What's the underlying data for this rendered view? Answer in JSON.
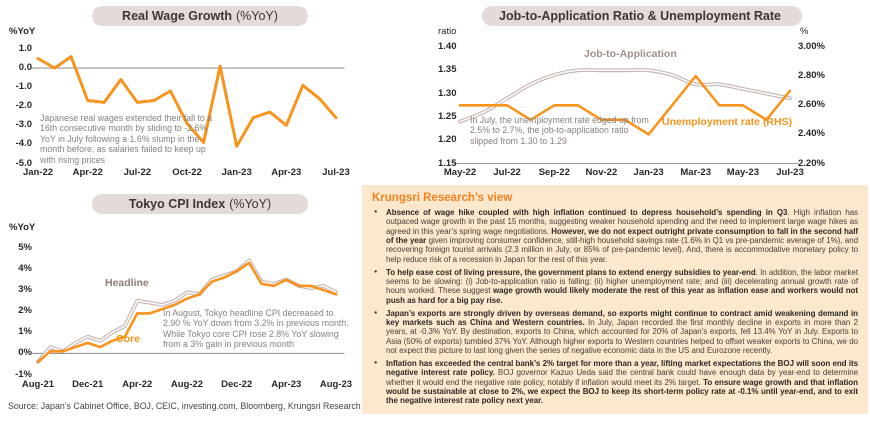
{
  "colors": {
    "accent_orange": "#F7941D",
    "line_taupe": "#C7B6B0",
    "title_pill_bg": "#E4DAD7",
    "panel_bg": "#FCE8CC",
    "panel_title_orange": "#F58220",
    "annotation_grey": "#8A807B",
    "axis_grey": "#8F8B88"
  },
  "chart_data": [
    {
      "id": "real_wage",
      "type": "line",
      "title": "Real Wage Growth",
      "title_suffix": "(%YoY)",
      "ylabel": "%YoY",
      "ylim": [
        -5.0,
        1.0
      ],
      "y_ticks": [
        1.0,
        0.0,
        -1.0,
        -2.0,
        -3.0,
        -4.0,
        -5.0
      ],
      "y_tick_labels": [
        "1.0",
        "0.0",
        "-1.0",
        "-2.0",
        "-3.0",
        "-4.0",
        "-5.0"
      ],
      "x": [
        "Jan-22",
        "Feb-22",
        "Mar-22",
        "Apr-22",
        "May-22",
        "Jun-22",
        "Jul-22",
        "Aug-22",
        "Sep-22",
        "Oct-22",
        "Nov-22",
        "Dec-22",
        "Jan-23",
        "Feb-23",
        "Mar-23",
        "Apr-23",
        "May-23",
        "Jun-23",
        "Jul-23"
      ],
      "x_tick_labels": [
        "Jan-22",
        "Apr-22",
        "Jul-22",
        "Oct-22",
        "Jan-23",
        "Apr-23",
        "Jul-23"
      ],
      "series": [
        {
          "name": "Real wage growth",
          "color": "#F7941D",
          "values": [
            0.5,
            0.0,
            0.6,
            -1.7,
            -1.8,
            -0.6,
            -1.8,
            -1.7,
            -1.2,
            -2.9,
            -3.9,
            0.1,
            -4.1,
            -2.6,
            -2.3,
            -3.0,
            -0.9,
            -1.6,
            -2.6
          ]
        }
      ],
      "annotation": "Japanese real wages extended their fall to a 16th consecutive month by sliding to -2.6% YoY in July following a 1.6% slump in the month before, as salaries failed to keep up with rising prices"
    },
    {
      "id": "job_unemployment",
      "type": "line",
      "title": "Job-to-Application Ratio & Unemployment Rate",
      "title_suffix": "",
      "ylabel_left": "ratio",
      "ylabel_right": "%",
      "ylim_left": [
        1.15,
        1.4
      ],
      "ylim_right": [
        2.2,
        3.0
      ],
      "y_ticks_left": [
        1.4,
        1.35,
        1.3,
        1.25,
        1.2,
        1.15
      ],
      "y_tick_labels_left": [
        "1.40",
        "1.35",
        "1.30",
        "1.25",
        "1.20",
        "1.15"
      ],
      "y_ticks_right": [
        3.0,
        2.8,
        2.6,
        2.4,
        2.2
      ],
      "y_tick_labels_right": [
        "3.00%",
        "2.80%",
        "2.60%",
        "2.40%",
        "2.20%"
      ],
      "x": [
        "May-22",
        "Jun-22",
        "Jul-22",
        "Aug-22",
        "Sep-22",
        "Oct-22",
        "Nov-22",
        "Dec-22",
        "Jan-23",
        "Feb-23",
        "Mar-23",
        "Apr-23",
        "May-23",
        "Jun-23",
        "Jul-23"
      ],
      "x_tick_labels": [
        "May-22",
        "Jul-22",
        "Sep-22",
        "Nov-22",
        "Jan-23",
        "Mar-23",
        "May-23",
        "Jul-23"
      ],
      "series": [
        {
          "name": "Job-to-Application",
          "axis": "left",
          "style": "outline",
          "color": "#C7B6B0",
          "label_color": "#A08E88",
          "values": [
            1.24,
            1.26,
            1.29,
            1.32,
            1.34,
            1.35,
            1.35,
            1.35,
            1.35,
            1.34,
            1.32,
            1.32,
            1.31,
            1.3,
            1.29
          ]
        },
        {
          "name": "Unemployment rate (RHS)",
          "axis": "right",
          "color": "#F7941D",
          "values": [
            2.6,
            2.6,
            2.6,
            2.5,
            2.6,
            2.6,
            2.5,
            2.5,
            2.4,
            2.6,
            2.8,
            2.6,
            2.6,
            2.5,
            2.7
          ]
        }
      ],
      "annotation": "In July, the unemployment rate edged up from 2.5% to 2.7%, the job-to-application ratio slipped from 1.30 to 1.29"
    },
    {
      "id": "tokyo_cpi",
      "type": "line",
      "title": "Tokyo CPI Index",
      "title_suffix": "(%YoY)",
      "ylabel": "%YoY",
      "ylim": [
        -1,
        5
      ],
      "y_ticks": [
        5,
        4,
        3,
        2,
        1,
        0,
        -1
      ],
      "y_tick_labels": [
        "5%",
        "4%",
        "3%",
        "2%",
        "1%",
        "0%",
        "-1%"
      ],
      "x": [
        "Aug-21",
        "Sep-21",
        "Oct-21",
        "Nov-21",
        "Dec-21",
        "Jan-22",
        "Feb-22",
        "Mar-22",
        "Apr-22",
        "May-22",
        "Jun-22",
        "Jul-22",
        "Aug-22",
        "Sep-22",
        "Oct-22",
        "Nov-22",
        "Dec-22",
        "Jan-23",
        "Feb-23",
        "Mar-23",
        "Apr-23",
        "May-23",
        "Jun-23",
        "Jul-23",
        "Aug-23"
      ],
      "x_tick_labels": [
        "Aug-21",
        "Dec-21",
        "Apr-22",
        "Aug-22",
        "Dec-22",
        "Apr-23",
        "Aug-23"
      ],
      "series": [
        {
          "name": "Headline",
          "style": "outline",
          "color": "#C7B6B0",
          "label_color": "#8D7B74",
          "values": [
            -0.4,
            0.3,
            0.1,
            0.5,
            0.8,
            0.6,
            1.0,
            1.3,
            2.5,
            2.4,
            2.3,
            2.5,
            2.9,
            2.8,
            3.5,
            3.7,
            3.9,
            4.4,
            3.4,
            3.3,
            3.5,
            3.2,
            3.1,
            3.2,
            2.9
          ]
        },
        {
          "name": "Core",
          "color": "#F7941D",
          "values": [
            -0.4,
            0.1,
            0.1,
            0.3,
            0.5,
            0.3,
            0.6,
            0.8,
            1.9,
            1.9,
            2.1,
            2.3,
            2.6,
            2.8,
            3.4,
            3.6,
            3.9,
            4.3,
            3.3,
            3.2,
            3.5,
            3.2,
            3.2,
            3.0,
            2.8
          ]
        }
      ],
      "annotation": "In August, Tokyo headline CPI decreased to 2.90 % YoY down from 3.2% in previous month. While Tokyo core CPI rose 2.8% YoY slowing from a 3% gain in previous month"
    }
  ],
  "source": "Source: Japan’s Cabinet Office, BOJ, CEIC, investing.com, Bloomberg, Krungsri Research",
  "panel": {
    "title": "Krungsri Research’s view",
    "bullets": [
      {
        "segments": [
          {
            "bold": true,
            "text": "Absence of wage hike coupled with high inflation continued to depress household’s spending in Q3"
          },
          {
            "bold": false,
            "text": ". High inflation has outpaced wage growth in the past 15 months, suggesting weaker household spending and the need to implement large wage hikes as agreed in this year’s spring wage negotiations. "
          },
          {
            "bold": true,
            "text": "However, we do not expect outright private consumption to fall in the second half of the year"
          },
          {
            "bold": false,
            "text": " given improving consumer confidence, still-high household savings rate (1.6% in Q1 vs pre-pandemic average of 1%), and recovering foreign tourist arrivals (2.3 million in July, or 85% of pre-pandemic level). And, there is accommodative monetary policy to help reduce risk of a recession in Japan for the rest of this year."
          }
        ]
      },
      {
        "segments": [
          {
            "bold": true,
            "text": "To help ease cost of living pressure, the government plans to extend energy subsidies to year-end"
          },
          {
            "bold": false,
            "text": ". In addition, the labor market seems to be slowing: (i) Job-to-application ratio is falling; (ii) higher unemployment rate; and (iii) decelerating annual growth rate of hours worked. These suggest "
          },
          {
            "bold": true,
            "text": "wage growth would likely moderate the rest of this year as inflation ease and workers would not push as hard for a big pay rise."
          }
        ]
      },
      {
        "segments": [
          {
            "bold": true,
            "text": "Japan’s exports are strongly driven by overseas demand, so exports might continue to contract amid weakening demand in key markets such as China and Western countries."
          },
          {
            "bold": false,
            "text": " In July, Japan recorded the first monthly decline in exports in more than 2 years, at -0.3% YoY. By destination, exports to China, which accounted for 20% of Japan’s exports, fell 13.4% YoY in July. Exports to Asia (50% of exports) tumbled 37% YoY. Although higher exports to Western countries helped to offset weaker exports to China, we do not expect this picture to last long given the series of negative economic data in the US and Eurozone recently."
          }
        ]
      },
      {
        "segments": [
          {
            "bold": true,
            "text": "Inflation has exceeded the central bank’s 2% target for more than a year, lifting market expectations the BOJ will soon end its negative interest rate policy."
          },
          {
            "bold": false,
            "text": " BOJ governor Kazuo Ueda said the central bank could have enough data by year-end to determine whether it would end the negative rate policy, notably if inflation would meet its 2% target. "
          },
          {
            "bold": true,
            "text": "To ensure wage growth and that inflation would be sustainable at close to 2%, we expect the BOJ to keep its short-term policy rate at -0.1% until year-end, and to exit the negative interest rate policy next year."
          }
        ]
      }
    ]
  }
}
